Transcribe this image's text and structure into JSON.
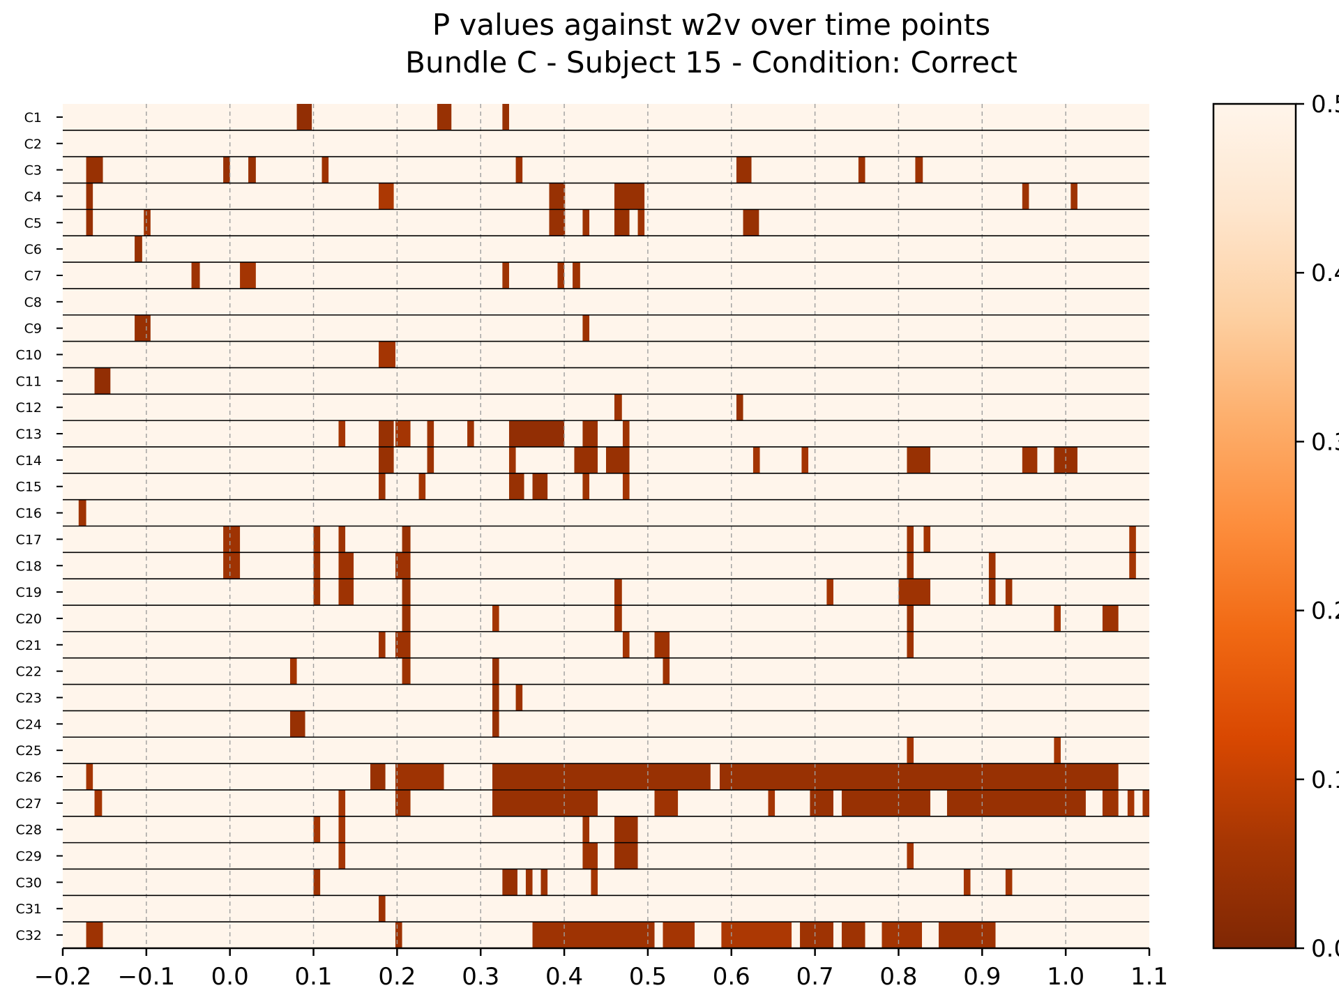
{
  "chart_data": {
    "type": "heatmap",
    "title_line1": "P values against w2v over time points",
    "title_line2": "Bundle C - Subject 15 - Condition: Correct",
    "xlabel": "",
    "ylabel": "",
    "xlim": [
      -0.2,
      1.1
    ],
    "x_ticks": [
      "−0.2",
      "−0.1",
      "0.0",
      "0.1",
      "0.2",
      "0.3",
      "0.4",
      "0.5",
      "0.6",
      "0.7",
      "0.8",
      "0.9",
      "1.0",
      "1.1"
    ],
    "x_tick_values": [
      -0.2,
      -0.1,
      0.0,
      0.1,
      0.2,
      0.3,
      0.4,
      0.5,
      0.6,
      0.7,
      0.8,
      0.9,
      1.0,
      1.1
    ],
    "vertical_grid": true,
    "colormap": "Oranges (reversed)",
    "colorbar": {
      "min": 0.0,
      "max": 0.5,
      "ticks": [
        "0.0",
        "0.1",
        "0.2",
        "0.3",
        "0.4",
        "0.5"
      ],
      "tick_values": [
        0.0,
        0.1,
        0.2,
        0.3,
        0.4,
        0.5
      ]
    },
    "background_value": 0.5,
    "rows": [
      {
        "label": "C1",
        "segments": [
          [
            0.08,
            0.098,
            0.03
          ],
          [
            0.248,
            0.265,
            0.04
          ],
          [
            0.326,
            0.334,
            0.04
          ]
        ]
      },
      {
        "label": "C2",
        "segments": []
      },
      {
        "label": "C3",
        "segments": [
          [
            -0.172,
            -0.152,
            0.04
          ],
          [
            -0.008,
            0.0,
            0.04
          ],
          [
            0.022,
            0.031,
            0.04
          ],
          [
            0.11,
            0.118,
            0.05
          ],
          [
            0.342,
            0.35,
            0.05
          ],
          [
            0.606,
            0.624,
            0.04
          ],
          [
            0.752,
            0.76,
            0.05
          ],
          [
            0.82,
            0.829,
            0.05
          ]
        ]
      },
      {
        "label": "C4",
        "segments": [
          [
            -0.172,
            -0.164,
            0.04
          ],
          [
            0.178,
            0.196,
            0.07
          ],
          [
            0.382,
            0.401,
            0.04
          ],
          [
            0.46,
            0.496,
            0.04
          ],
          [
            0.948,
            0.956,
            0.05
          ],
          [
            1.006,
            1.014,
            0.05
          ]
        ]
      },
      {
        "label": "C5",
        "segments": [
          [
            -0.172,
            -0.164,
            0.04
          ],
          [
            -0.103,
            -0.095,
            0.05
          ],
          [
            0.382,
            0.401,
            0.04
          ],
          [
            0.422,
            0.43,
            0.05
          ],
          [
            0.46,
            0.478,
            0.04
          ],
          [
            0.488,
            0.496,
            0.05
          ],
          [
            0.614,
            0.633,
            0.04
          ]
        ]
      },
      {
        "label": "C6",
        "segments": [
          [
            -0.114,
            -0.105,
            0.04
          ]
        ]
      },
      {
        "label": "C7",
        "segments": [
          [
            -0.046,
            -0.036,
            0.05
          ],
          [
            0.012,
            0.031,
            0.06
          ],
          [
            0.326,
            0.334,
            0.05
          ],
          [
            0.392,
            0.4,
            0.05
          ],
          [
            0.41,
            0.419,
            0.05
          ]
        ]
      },
      {
        "label": "C8",
        "segments": []
      },
      {
        "label": "C9",
        "segments": [
          [
            -0.114,
            -0.095,
            0.04
          ],
          [
            0.422,
            0.43,
            0.05
          ]
        ]
      },
      {
        "label": "C10",
        "segments": [
          [
            0.178,
            0.198,
            0.06
          ]
        ]
      },
      {
        "label": "C11",
        "segments": [
          [
            -0.162,
            -0.143,
            0.03
          ]
        ]
      },
      {
        "label": "C12",
        "segments": [
          [
            0.46,
            0.469,
            0.05
          ],
          [
            0.606,
            0.614,
            0.04
          ]
        ]
      },
      {
        "label": "C13",
        "segments": [
          [
            0.13,
            0.138,
            0.06
          ],
          [
            0.178,
            0.196,
            0.04
          ],
          [
            0.198,
            0.216,
            0.06
          ],
          [
            0.236,
            0.244,
            0.05
          ],
          [
            0.284,
            0.292,
            0.05
          ],
          [
            0.334,
            0.4,
            0.03
          ],
          [
            0.422,
            0.44,
            0.04
          ],
          [
            0.47,
            0.478,
            0.05
          ]
        ]
      },
      {
        "label": "C14",
        "segments": [
          [
            0.178,
            0.196,
            0.04
          ],
          [
            0.236,
            0.244,
            0.05
          ],
          [
            0.334,
            0.342,
            0.05
          ],
          [
            0.412,
            0.44,
            0.04
          ],
          [
            0.45,
            0.478,
            0.04
          ],
          [
            0.626,
            0.634,
            0.06
          ],
          [
            0.684,
            0.692,
            0.06
          ],
          [
            0.81,
            0.838,
            0.04
          ],
          [
            0.948,
            0.966,
            0.05
          ],
          [
            0.986,
            1.014,
            0.04
          ]
        ]
      },
      {
        "label": "C15",
        "segments": [
          [
            0.178,
            0.186,
            0.05
          ],
          [
            0.226,
            0.234,
            0.06
          ],
          [
            0.334,
            0.352,
            0.04
          ],
          [
            0.362,
            0.38,
            0.04
          ],
          [
            0.422,
            0.43,
            0.05
          ],
          [
            0.47,
            0.478,
            0.06
          ]
        ]
      },
      {
        "label": "C16",
        "segments": [
          [
            -0.181,
            -0.172,
            0.05
          ]
        ]
      },
      {
        "label": "C17",
        "segments": [
          [
            -0.008,
            0.012,
            0.05
          ],
          [
            0.1,
            0.108,
            0.05
          ],
          [
            0.13,
            0.138,
            0.05
          ],
          [
            0.206,
            0.216,
            0.04
          ],
          [
            0.81,
            0.818,
            0.05
          ],
          [
            0.83,
            0.838,
            0.06
          ],
          [
            1.076,
            1.084,
            0.06
          ]
        ]
      },
      {
        "label": "C18",
        "segments": [
          [
            -0.008,
            0.012,
            0.05
          ],
          [
            0.1,
            0.108,
            0.05
          ],
          [
            0.13,
            0.148,
            0.05
          ],
          [
            0.198,
            0.216,
            0.05
          ],
          [
            0.81,
            0.818,
            0.05
          ],
          [
            0.908,
            0.916,
            0.05
          ],
          [
            1.076,
            1.084,
            0.06
          ]
        ]
      },
      {
        "label": "C19",
        "segments": [
          [
            0.1,
            0.108,
            0.05
          ],
          [
            0.13,
            0.148,
            0.05
          ],
          [
            0.206,
            0.216,
            0.04
          ],
          [
            0.46,
            0.469,
            0.05
          ],
          [
            0.714,
            0.722,
            0.06
          ],
          [
            0.8,
            0.838,
            0.05
          ],
          [
            0.908,
            0.916,
            0.05
          ],
          [
            0.928,
            0.936,
            0.05
          ]
        ]
      },
      {
        "label": "C20",
        "segments": [
          [
            0.206,
            0.216,
            0.04
          ],
          [
            0.314,
            0.322,
            0.06
          ],
          [
            0.46,
            0.469,
            0.05
          ],
          [
            0.81,
            0.818,
            0.04
          ],
          [
            0.986,
            0.994,
            0.06
          ],
          [
            1.044,
            1.063,
            0.05
          ]
        ]
      },
      {
        "label": "C21",
        "segments": [
          [
            0.178,
            0.186,
            0.05
          ],
          [
            0.198,
            0.216,
            0.05
          ],
          [
            0.47,
            0.478,
            0.06
          ],
          [
            0.508,
            0.526,
            0.05
          ],
          [
            0.81,
            0.818,
            0.05
          ]
        ]
      },
      {
        "label": "C22",
        "segments": [
          [
            0.072,
            0.08,
            0.06
          ],
          [
            0.206,
            0.216,
            0.05
          ],
          [
            0.314,
            0.322,
            0.04
          ],
          [
            0.518,
            0.526,
            0.05
          ]
        ]
      },
      {
        "label": "C23",
        "segments": [
          [
            0.314,
            0.322,
            0.04
          ],
          [
            0.342,
            0.35,
            0.05
          ]
        ]
      },
      {
        "label": "C24",
        "segments": [
          [
            0.072,
            0.09,
            0.04
          ],
          [
            0.314,
            0.322,
            0.04
          ]
        ]
      },
      {
        "label": "C25",
        "segments": [
          [
            0.81,
            0.818,
            0.06
          ],
          [
            0.986,
            0.994,
            0.06
          ]
        ]
      },
      {
        "label": "C26",
        "segments": [
          [
            -0.172,
            -0.164,
            0.06
          ],
          [
            0.168,
            0.186,
            0.04
          ],
          [
            0.198,
            0.256,
            0.05
          ],
          [
            0.314,
            0.575,
            0.04
          ],
          [
            0.586,
            1.063,
            0.04
          ]
        ]
      },
      {
        "label": "C27",
        "segments": [
          [
            -0.162,
            -0.153,
            0.06
          ],
          [
            0.13,
            0.138,
            0.06
          ],
          [
            0.198,
            0.216,
            0.05
          ],
          [
            0.314,
            0.44,
            0.04
          ],
          [
            0.508,
            0.536,
            0.05
          ],
          [
            0.644,
            0.652,
            0.06
          ],
          [
            0.694,
            0.722,
            0.04
          ],
          [
            0.732,
            0.838,
            0.04
          ],
          [
            0.858,
            1.024,
            0.04
          ],
          [
            1.044,
            1.063,
            0.05
          ],
          [
            1.074,
            1.082,
            0.06
          ],
          [
            1.092,
            1.1,
            0.06
          ]
        ]
      },
      {
        "label": "C28",
        "segments": [
          [
            0.1,
            0.108,
            0.06
          ],
          [
            0.13,
            0.138,
            0.06
          ],
          [
            0.422,
            0.43,
            0.05
          ],
          [
            0.46,
            0.488,
            0.04
          ]
        ]
      },
      {
        "label": "C29",
        "segments": [
          [
            0.13,
            0.138,
            0.06
          ],
          [
            0.422,
            0.44,
            0.05
          ],
          [
            0.46,
            0.488,
            0.04
          ],
          [
            0.81,
            0.818,
            0.06
          ]
        ]
      },
      {
        "label": "C30",
        "segments": [
          [
            0.1,
            0.108,
            0.05
          ],
          [
            0.326,
            0.344,
            0.04
          ],
          [
            0.354,
            0.362,
            0.05
          ],
          [
            0.372,
            0.38,
            0.05
          ],
          [
            0.432,
            0.44,
            0.06
          ],
          [
            0.878,
            0.886,
            0.06
          ],
          [
            0.928,
            0.936,
            0.06
          ]
        ]
      },
      {
        "label": "C31",
        "segments": [
          [
            0.178,
            0.186,
            0.05
          ]
        ]
      },
      {
        "label": "C32",
        "segments": [
          [
            -0.172,
            -0.152,
            0.05
          ],
          [
            0.198,
            0.206,
            0.05
          ],
          [
            0.362,
            0.508,
            0.05
          ],
          [
            0.518,
            0.556,
            0.06
          ],
          [
            0.588,
            0.672,
            0.07
          ],
          [
            0.682,
            0.722,
            0.05
          ],
          [
            0.732,
            0.76,
            0.05
          ],
          [
            0.78,
            0.828,
            0.06
          ],
          [
            0.848,
            0.916,
            0.05
          ]
        ]
      }
    ]
  },
  "colors": {
    "cmap_stops": [
      "#7f2704",
      "#a63603",
      "#d94801",
      "#f16913",
      "#fd8d3c",
      "#fdae6b",
      "#fdd0a2",
      "#fee6ce",
      "#fff5eb"
    ],
    "row_separator": "#000000",
    "grid": "#9e9e9e",
    "text": "#000000"
  }
}
